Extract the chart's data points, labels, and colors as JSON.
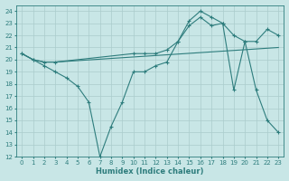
{
  "xlabel": "Humidex (Indice chaleur)",
  "xlim": [
    -0.5,
    23.5
  ],
  "ylim": [
    12,
    24.5
  ],
  "yticks": [
    12,
    13,
    14,
    15,
    16,
    17,
    18,
    19,
    20,
    21,
    22,
    23,
    24
  ],
  "xticks": [
    0,
    1,
    2,
    3,
    4,
    5,
    6,
    7,
    8,
    9,
    10,
    11,
    12,
    13,
    14,
    15,
    16,
    17,
    18,
    19,
    20,
    21,
    22,
    23
  ],
  "bg_color": "#c8e6e6",
  "grid_color": "#aacccc",
  "line_color": "#2e7d7d",
  "series": [
    {
      "x": [
        0,
        1,
        2,
        3,
        23
      ],
      "y": [
        20.5,
        20.0,
        19.8,
        19.8,
        21.0
      ],
      "has_markers": false
    },
    {
      "x": [
        0,
        1,
        2,
        3,
        10,
        11,
        12,
        13,
        14,
        15,
        16,
        17,
        18,
        19,
        20,
        21,
        22,
        23
      ],
      "y": [
        20.5,
        20.0,
        19.8,
        19.8,
        20.5,
        20.5,
        20.5,
        20.8,
        21.5,
        23.2,
        24.0,
        23.5,
        23.0,
        22.0,
        21.5,
        21.5,
        22.5,
        22.0
      ],
      "has_markers": true
    },
    {
      "x": [
        0,
        1,
        2,
        3,
        4,
        5,
        6,
        7,
        8,
        9,
        10,
        11,
        12,
        13,
        14,
        15,
        16,
        17,
        18,
        19,
        20,
        21,
        22,
        23
      ],
      "y": [
        20.5,
        20.0,
        19.5,
        19.0,
        18.5,
        17.8,
        16.5,
        12.0,
        14.5,
        16.5,
        19.0,
        19.0,
        19.5,
        19.8,
        21.5,
        22.8,
        23.5,
        22.8,
        23.0,
        17.5,
        21.5,
        17.5,
        15.0,
        14.0
      ],
      "has_markers": true
    }
  ]
}
